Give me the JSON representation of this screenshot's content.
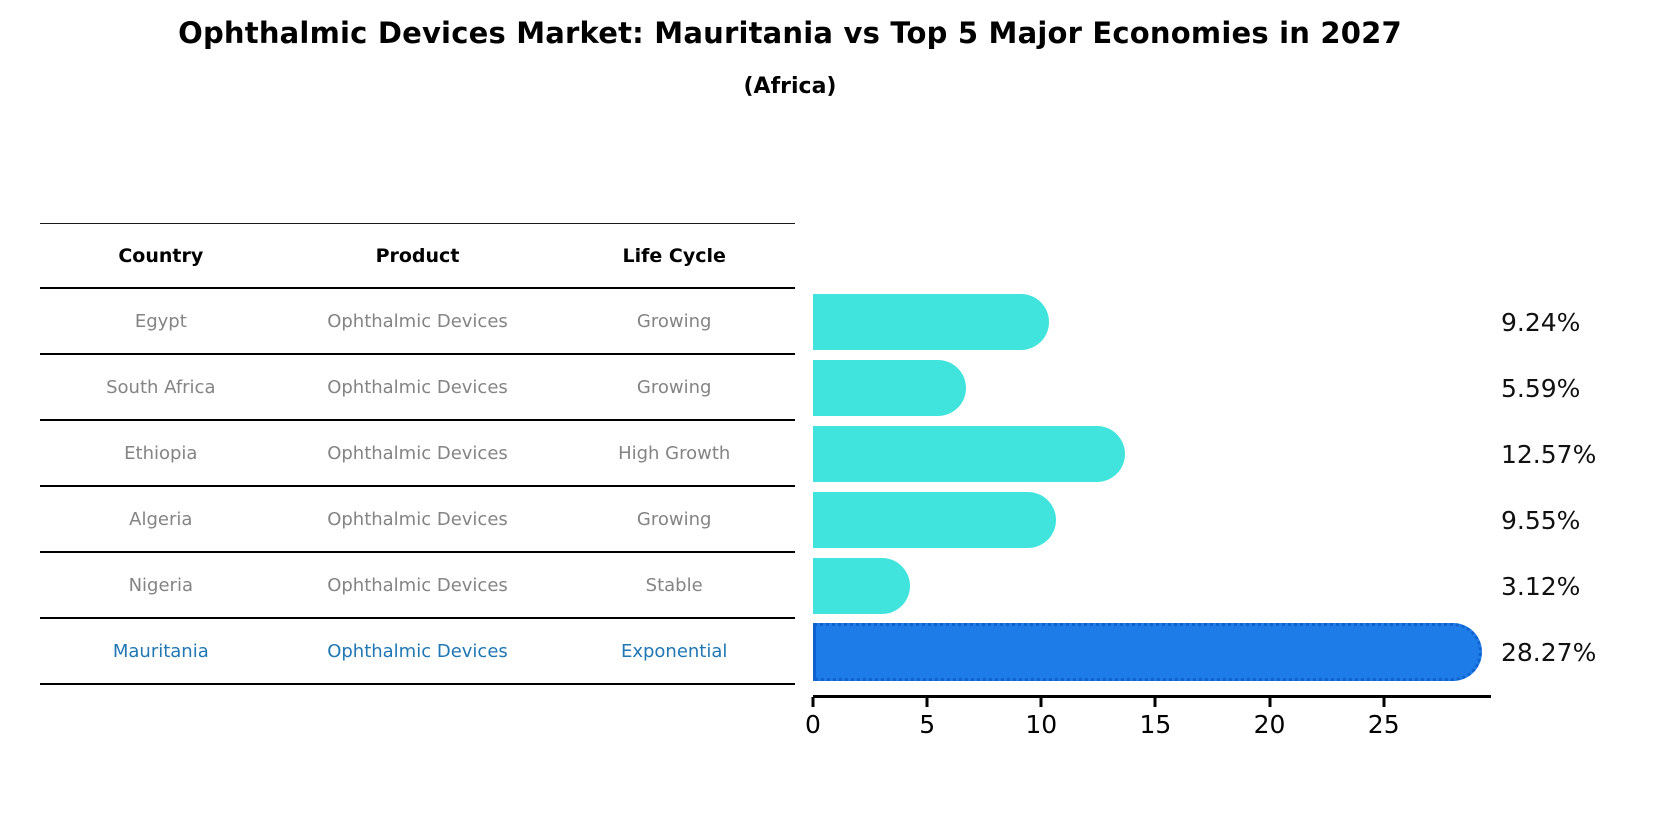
{
  "title": "Ophthalmic Devices Market: Mauritania vs Top 5 Major Economies in 2027",
  "subtitle": "(Africa)",
  "table": {
    "headers": [
      "Country",
      "Product",
      "Life Cycle"
    ],
    "rows": [
      {
        "country": "Egypt",
        "product": "Ophthalmic Devices",
        "life_cycle": "Growing",
        "highlight": false
      },
      {
        "country": "South Africa",
        "product": "Ophthalmic Devices",
        "life_cycle": "Growing",
        "highlight": false
      },
      {
        "country": "Ethiopia",
        "product": "Ophthalmic Devices",
        "life_cycle": "High Growth",
        "highlight": false
      },
      {
        "country": "Algeria",
        "product": "Ophthalmic Devices",
        "life_cycle": "Growing",
        "highlight": false
      },
      {
        "country": "Nigeria",
        "product": "Ophthalmic Devices",
        "life_cycle": "Stable",
        "highlight": false
      },
      {
        "country": "Mauritania",
        "product": "Ophthalmic Devices",
        "life_cycle": "Exponential",
        "highlight": true
      }
    ]
  },
  "chart_data": {
    "type": "bar",
    "orientation": "horizontal",
    "title": "Ophthalmic Devices Market: Mauritania vs Top 5 Major Economies in 2027",
    "subtitle": "(Africa)",
    "categories": [
      "Egypt",
      "South Africa",
      "Ethiopia",
      "Algeria",
      "Nigeria",
      "Mauritania"
    ],
    "values": [
      9.24,
      5.59,
      12.57,
      9.55,
      3.12,
      28.27
    ],
    "labels": [
      "9.24%",
      "5.59%",
      "12.57%",
      "9.55%",
      "3.12%",
      "28.27%"
    ],
    "unit": "%",
    "xlabel": "",
    "ylabel": "",
    "xlim": [
      0,
      29.7
    ],
    "xticks": [
      0,
      5,
      10,
      15,
      20,
      25
    ],
    "grid": false,
    "legend": false,
    "highlight_index": 5,
    "bar_color": "#40E4DC",
    "highlight_color": "#1E7CE8",
    "highlight_edge_color": "#0E62CE",
    "highlight_text_color": "#1F77B4",
    "table_text_color": "#848484"
  }
}
